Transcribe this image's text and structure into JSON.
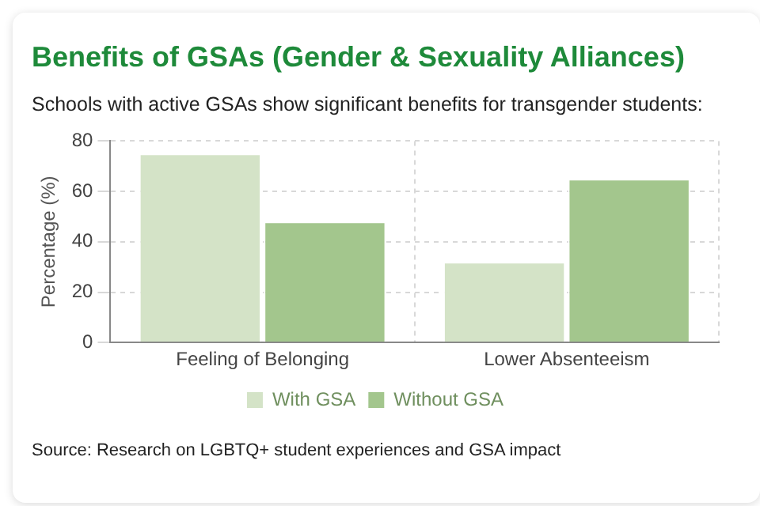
{
  "chart_data": {
    "type": "bar",
    "title": "Benefits of GSAs (Gender & Sexuality Alliances)",
    "subtitle": "Schools with active GSAs show significant benefits for transgender students:",
    "ylabel": "Percentage (%)",
    "categories": [
      "Feeling of Belonging",
      "Lower Absenteeism"
    ],
    "series": [
      {
        "name": "With GSA",
        "color": "#d4e3c7",
        "values": [
          75,
          32
        ]
      },
      {
        "name": "Without GSA",
        "color": "#a3c68d",
        "values": [
          48,
          65
        ]
      }
    ],
    "ylim": [
      0,
      80
    ],
    "yticks": [
      0,
      20,
      40,
      60,
      80
    ],
    "grid": true,
    "legend": "bottom",
    "annotations": [
      "Source: Research on LGBTQ+ student experiences and GSA impact"
    ]
  }
}
